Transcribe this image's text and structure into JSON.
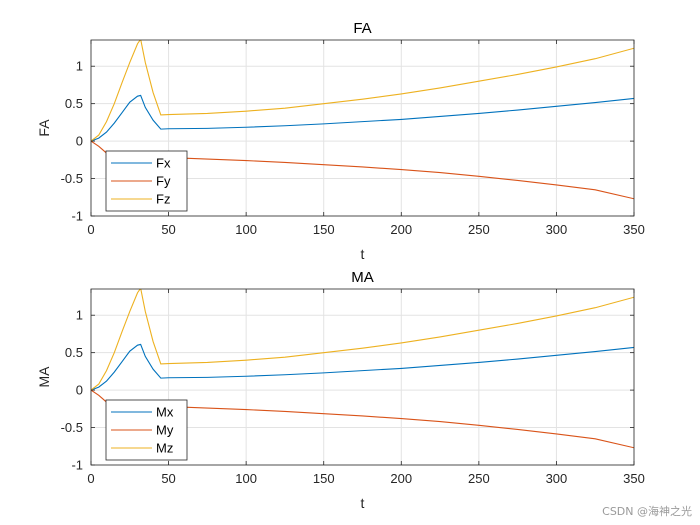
{
  "chart_data": [
    {
      "type": "line",
      "title": "FA",
      "xlabel": "t",
      "ylabel": "FA",
      "xlim": [
        0,
        350
      ],
      "ylim": [
        -1,
        1.35
      ],
      "xticks": [
        0,
        50,
        100,
        150,
        200,
        250,
        300,
        350
      ],
      "yticks": [
        -1,
        -0.5,
        0,
        0.5,
        1
      ],
      "grid": true,
      "legend_position": "bottom-left",
      "series": [
        {
          "name": "Fx",
          "color": "#0072BD",
          "x": [
            0,
            5,
            10,
            15,
            20,
            25,
            30,
            32,
            35,
            40,
            45,
            50,
            75,
            100,
            125,
            150,
            175,
            200,
            225,
            250,
            275,
            300,
            325,
            350
          ],
          "y": [
            0,
            0.04,
            0.12,
            0.24,
            0.38,
            0.52,
            0.6,
            0.61,
            0.45,
            0.28,
            0.16,
            0.165,
            0.17,
            0.185,
            0.205,
            0.23,
            0.26,
            0.29,
            0.33,
            0.37,
            0.415,
            0.465,
            0.515,
            0.57
          ]
        },
        {
          "name": "Fy",
          "color": "#D95319",
          "x": [
            0,
            5,
            10,
            15,
            20,
            25,
            30,
            35,
            40,
            45,
            50,
            75,
            100,
            125,
            150,
            175,
            200,
            225,
            250,
            275,
            300,
            325,
            350
          ],
          "y": [
            0,
            -0.07,
            -0.16,
            -0.19,
            -0.2,
            -0.205,
            -0.21,
            -0.212,
            -0.215,
            -0.218,
            -0.22,
            -0.24,
            -0.26,
            -0.285,
            -0.315,
            -0.345,
            -0.38,
            -0.42,
            -0.47,
            -0.525,
            -0.585,
            -0.65,
            -0.77
          ]
        },
        {
          "name": "Fz",
          "color": "#EDB120",
          "x": [
            0,
            5,
            10,
            15,
            20,
            25,
            30,
            32,
            35,
            40,
            45,
            50,
            75,
            100,
            125,
            150,
            175,
            200,
            225,
            250,
            275,
            300,
            325,
            350
          ],
          "y": [
            0,
            0.08,
            0.26,
            0.5,
            0.78,
            1.05,
            1.3,
            1.36,
            1.05,
            0.65,
            0.35,
            0.355,
            0.37,
            0.4,
            0.44,
            0.5,
            0.56,
            0.63,
            0.71,
            0.8,
            0.89,
            0.99,
            1.1,
            1.24
          ]
        }
      ]
    },
    {
      "type": "line",
      "title": "MA",
      "xlabel": "t",
      "ylabel": "MA",
      "xlim": [
        0,
        350
      ],
      "ylim": [
        -1,
        1.35
      ],
      "xticks": [
        0,
        50,
        100,
        150,
        200,
        250,
        300,
        350
      ],
      "yticks": [
        -1,
        -0.5,
        0,
        0.5,
        1
      ],
      "grid": true,
      "legend_position": "bottom-left",
      "series": [
        {
          "name": "Mx",
          "color": "#0072BD",
          "x": [
            0,
            5,
            10,
            15,
            20,
            25,
            30,
            32,
            35,
            40,
            45,
            50,
            75,
            100,
            125,
            150,
            175,
            200,
            225,
            250,
            275,
            300,
            325,
            350
          ],
          "y": [
            0,
            0.04,
            0.12,
            0.24,
            0.38,
            0.52,
            0.6,
            0.61,
            0.45,
            0.28,
            0.16,
            0.165,
            0.17,
            0.185,
            0.205,
            0.23,
            0.26,
            0.29,
            0.33,
            0.37,
            0.415,
            0.465,
            0.515,
            0.57
          ]
        },
        {
          "name": "My",
          "color": "#D95319",
          "x": [
            0,
            5,
            10,
            15,
            20,
            25,
            30,
            35,
            40,
            45,
            50,
            75,
            100,
            125,
            150,
            175,
            200,
            225,
            250,
            275,
            300,
            325,
            350
          ],
          "y": [
            0,
            -0.07,
            -0.16,
            -0.19,
            -0.2,
            -0.205,
            -0.21,
            -0.212,
            -0.215,
            -0.218,
            -0.22,
            -0.24,
            -0.26,
            -0.285,
            -0.315,
            -0.345,
            -0.38,
            -0.42,
            -0.47,
            -0.525,
            -0.585,
            -0.65,
            -0.77
          ]
        },
        {
          "name": "Mz",
          "color": "#EDB120",
          "x": [
            0,
            5,
            10,
            15,
            20,
            25,
            30,
            32,
            35,
            40,
            45,
            50,
            75,
            100,
            125,
            150,
            175,
            200,
            225,
            250,
            275,
            300,
            325,
            350
          ],
          "y": [
            0,
            0.08,
            0.26,
            0.5,
            0.78,
            1.05,
            1.3,
            1.36,
            1.05,
            0.65,
            0.35,
            0.355,
            0.37,
            0.4,
            0.44,
            0.5,
            0.56,
            0.63,
            0.71,
            0.8,
            0.89,
            0.99,
            1.1,
            1.24
          ]
        }
      ]
    }
  ],
  "watermark": "CSDN @海神之光"
}
